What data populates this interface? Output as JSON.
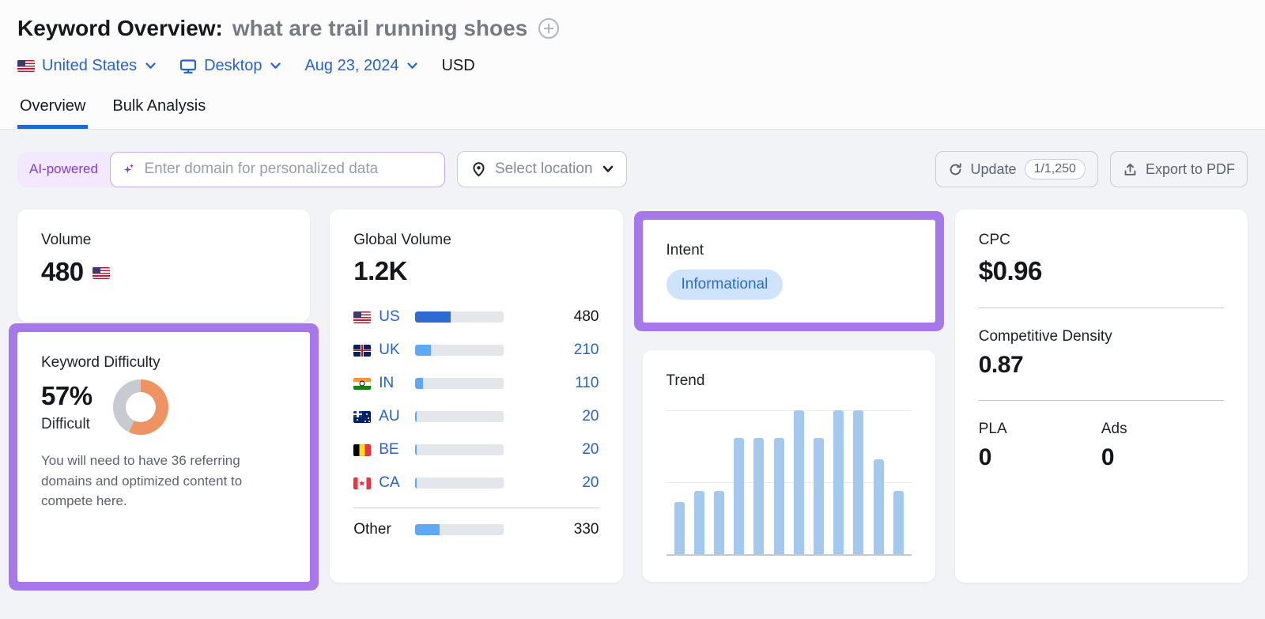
{
  "header": {
    "title": "Keyword Overview:",
    "keyword": "what are trail running shoes",
    "filters": {
      "country": "United States",
      "device": "Desktop",
      "date": "Aug 23, 2024",
      "currency": "USD"
    },
    "tabs": [
      {
        "label": "Overview"
      },
      {
        "label": "Bulk Analysis"
      }
    ]
  },
  "toolbar": {
    "ai_badge": "AI-powered",
    "domain_input_placeholder": "Enter domain for personalized data",
    "select_location_label": "Select location",
    "update_label": "Update",
    "update_quota": "1/1,250",
    "export_label": "Export to PDF"
  },
  "cards": {
    "volume": {
      "label": "Volume",
      "value": "480",
      "flag": "us"
    },
    "keyword_difficulty": {
      "label": "Keyword Difficulty",
      "value": "57%",
      "percent": 57,
      "level": "Difficult",
      "description": "You will need to have 36 referring domains and optimized content to compete here."
    },
    "global_volume": {
      "label": "Global Volume",
      "value": "1.2K",
      "rows": [
        {
          "code": "US",
          "flag": "us",
          "value": "480",
          "share": 40,
          "link": false
        },
        {
          "code": "UK",
          "flag": "uk",
          "value": "210",
          "share": 17.5,
          "link": true
        },
        {
          "code": "IN",
          "flag": "in",
          "value": "110",
          "share": 9,
          "link": true
        },
        {
          "code": "AU",
          "flag": "au",
          "value": "20",
          "share": 2,
          "link": true
        },
        {
          "code": "BE",
          "flag": "be",
          "value": "20",
          "share": 2,
          "link": true
        },
        {
          "code": "CA",
          "flag": "ca",
          "value": "20",
          "share": 2,
          "link": true
        }
      ],
      "other": {
        "label": "Other",
        "value": "330",
        "share": 27.5
      }
    },
    "intent": {
      "label": "Intent",
      "badge": "Informational"
    },
    "trend": {
      "label": "Trend"
    },
    "cpc": {
      "label": "CPC",
      "value": "$0.96"
    },
    "competitive_density": {
      "label": "Competitive Density",
      "value": "0.87"
    },
    "pla": {
      "label": "PLA",
      "value": "0"
    },
    "ads": {
      "label": "Ads",
      "value": "0"
    }
  },
  "chart_data": {
    "type": "bar",
    "title": "Trend",
    "values": [
      0.36,
      0.44,
      0.44,
      0.81,
      0.81,
      0.81,
      1.0,
      0.81,
      1.0,
      1.0,
      0.66,
      0.44
    ],
    "ylim": [
      0,
      1
    ],
    "gridlines": [
      0.5,
      1.0
    ],
    "bar_color": "#a3c9ee",
    "note": "12 monthly bars, no axis labels shown"
  },
  "colors": {
    "accent_blue": "#2268d1",
    "link_blue": "#2563ce",
    "highlight_purple": "#a678ea",
    "ai_purple": "#7c3fe4",
    "kd_orange": "#ee9361",
    "kd_gray": "#c7cad0",
    "bar_dark_blue": "#2e6bd0",
    "bar_light_blue": "#5caaf7",
    "intent_badge_bg": "#cfe4fb"
  }
}
